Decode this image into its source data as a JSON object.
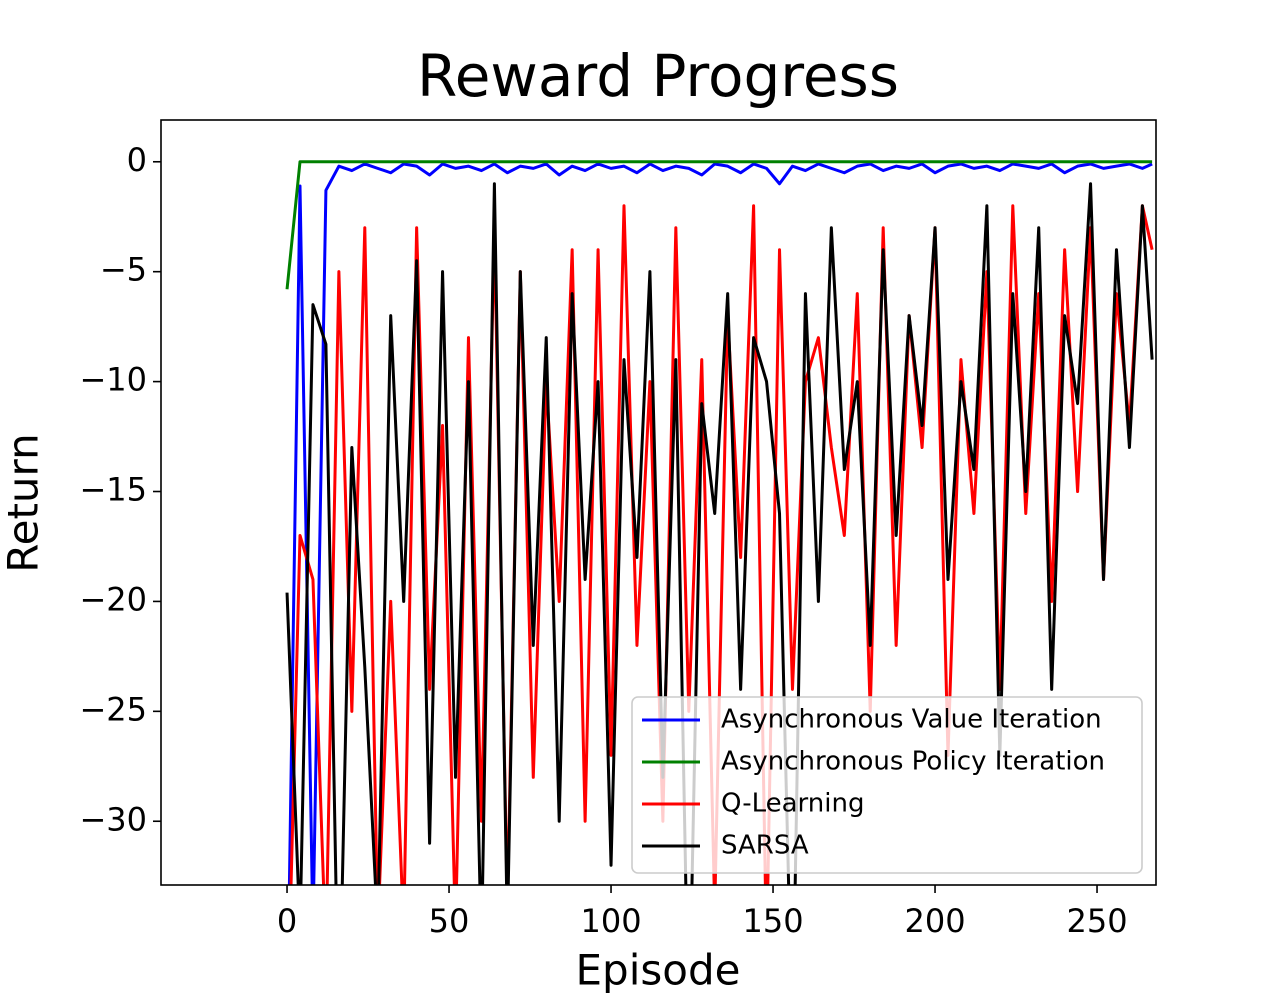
{
  "chart_data": {
    "type": "line",
    "title": "Reward Progress",
    "x_label": "Episode",
    "y_label": "Return",
    "x": [
      0,
      4,
      8,
      12,
      16,
      20,
      24,
      28,
      32,
      36,
      40,
      44,
      48,
      52,
      56,
      60,
      64,
      68,
      72,
      76,
      80,
      84,
      88,
      92,
      96,
      100,
      104,
      108,
      112,
      116,
      120,
      124,
      128,
      132,
      136,
      140,
      144,
      148,
      152,
      156,
      160,
      164,
      168,
      172,
      176,
      180,
      184,
      188,
      192,
      196,
      200,
      204,
      208,
      212,
      216,
      220,
      224,
      228,
      232,
      236,
      240,
      244,
      248,
      252,
      256,
      260,
      264,
      267
    ],
    "series": [
      {
        "name": "Asynchronous Value Iteration",
        "color": "#0000ff",
        "values": [
          -40,
          -1.1,
          -35,
          -1.3,
          -0.2,
          -0.4,
          -0.1,
          -0.3,
          -0.5,
          -0.1,
          -0.2,
          -0.6,
          -0.1,
          -0.3,
          -0.2,
          -0.4,
          -0.1,
          -0.5,
          -0.2,
          -0.3,
          -0.1,
          -0.6,
          -0.2,
          -0.4,
          -0.1,
          -0.3,
          -0.2,
          -0.5,
          -0.1,
          -0.4,
          -0.2,
          -0.3,
          -0.6,
          -0.1,
          -0.2,
          -0.5,
          -0.1,
          -0.3,
          -1.0,
          -0.2,
          -0.4,
          -0.1,
          -0.3,
          -0.5,
          -0.2,
          -0.1,
          -0.4,
          -0.2,
          -0.3,
          -0.1,
          -0.5,
          -0.2,
          -0.1,
          -0.3,
          -0.2,
          -0.4,
          -0.1,
          -0.2,
          -0.3,
          -0.1,
          -0.5,
          -0.2,
          -0.1,
          -0.3,
          -0.2,
          -0.1,
          -0.3,
          -0.1
        ]
      },
      {
        "name": "Asynchronous Policy Iteration",
        "color": "#008000",
        "values": [
          -5.8,
          0,
          0,
          0,
          0,
          0,
          0,
          0,
          0,
          0,
          0,
          0,
          0,
          0,
          0,
          0,
          0,
          0,
          0,
          0,
          0,
          0,
          0,
          0,
          0,
          0,
          0,
          0,
          0,
          0,
          0,
          0,
          0,
          0,
          0,
          0,
          0,
          0,
          0,
          0,
          0,
          0,
          0,
          0,
          0,
          0,
          0,
          0,
          0,
          0,
          0,
          0,
          0,
          0,
          0,
          0,
          0,
          0,
          0,
          0,
          0,
          0,
          0,
          0,
          0,
          0,
          0,
          0
        ]
      },
      {
        "name": "Q-Learning",
        "color": "#ff0000",
        "values": [
          -40,
          -17,
          -19,
          -36,
          -5,
          -25,
          -3,
          -35,
          -20,
          -35,
          -3,
          -24,
          -12,
          -35,
          -8,
          -30,
          -3,
          -34,
          -5,
          -28,
          -10,
          -20,
          -4,
          -30,
          -4,
          -27,
          -2,
          -22,
          -10,
          -30,
          -3,
          -25,
          -9,
          -34,
          -7,
          -18,
          -2,
          -36,
          -4,
          -24,
          -10,
          -8,
          -13,
          -17,
          -6,
          -25,
          -3,
          -22,
          -7,
          -13,
          -3,
          -27,
          -9,
          -16,
          -5,
          -24,
          -2,
          -16,
          -6,
          -20,
          -4,
          -15,
          -3,
          -19,
          -6,
          -12,
          -2,
          -4
        ]
      },
      {
        "name": "SARSA",
        "color": "#000000",
        "values": [
          -19.6,
          -35,
          -6.5,
          -8.3,
          -40,
          -13,
          -23,
          -35,
          -7,
          -20,
          -4.5,
          -31,
          -5,
          -28,
          -10,
          -36,
          -1,
          -35,
          -5,
          -22,
          -8,
          -30,
          -6,
          -19,
          -10,
          -32,
          -9,
          -18,
          -5,
          -28,
          -9,
          -40,
          -11,
          -16,
          -6,
          -24,
          -8,
          -10,
          -16,
          -40,
          -6,
          -20,
          -3,
          -14,
          -10,
          -22,
          -4,
          -17,
          -7,
          -12,
          -3,
          -19,
          -10,
          -14,
          -2,
          -27,
          -6,
          -15,
          -3,
          -24,
          -7,
          -11,
          -1,
          -19,
          -4,
          -13,
          -2,
          -9
        ]
      }
    ],
    "xlim": [
      -38.9,
      268.2
    ],
    "xticks": [
      0,
      50,
      100,
      150,
      200,
      250
    ],
    "ylim": [
      -32.9,
      1.9
    ],
    "yticks": [
      {
        "value": -30,
        "label": "−30"
      },
      {
        "value": -25,
        "label": "−25"
      },
      {
        "value": -20,
        "label": "−20"
      },
      {
        "value": -15,
        "label": "−15"
      },
      {
        "value": -10,
        "label": "−10"
      },
      {
        "value": -5,
        "label": "−5"
      },
      0
    ],
    "legend": "lower right",
    "grid": false
  }
}
